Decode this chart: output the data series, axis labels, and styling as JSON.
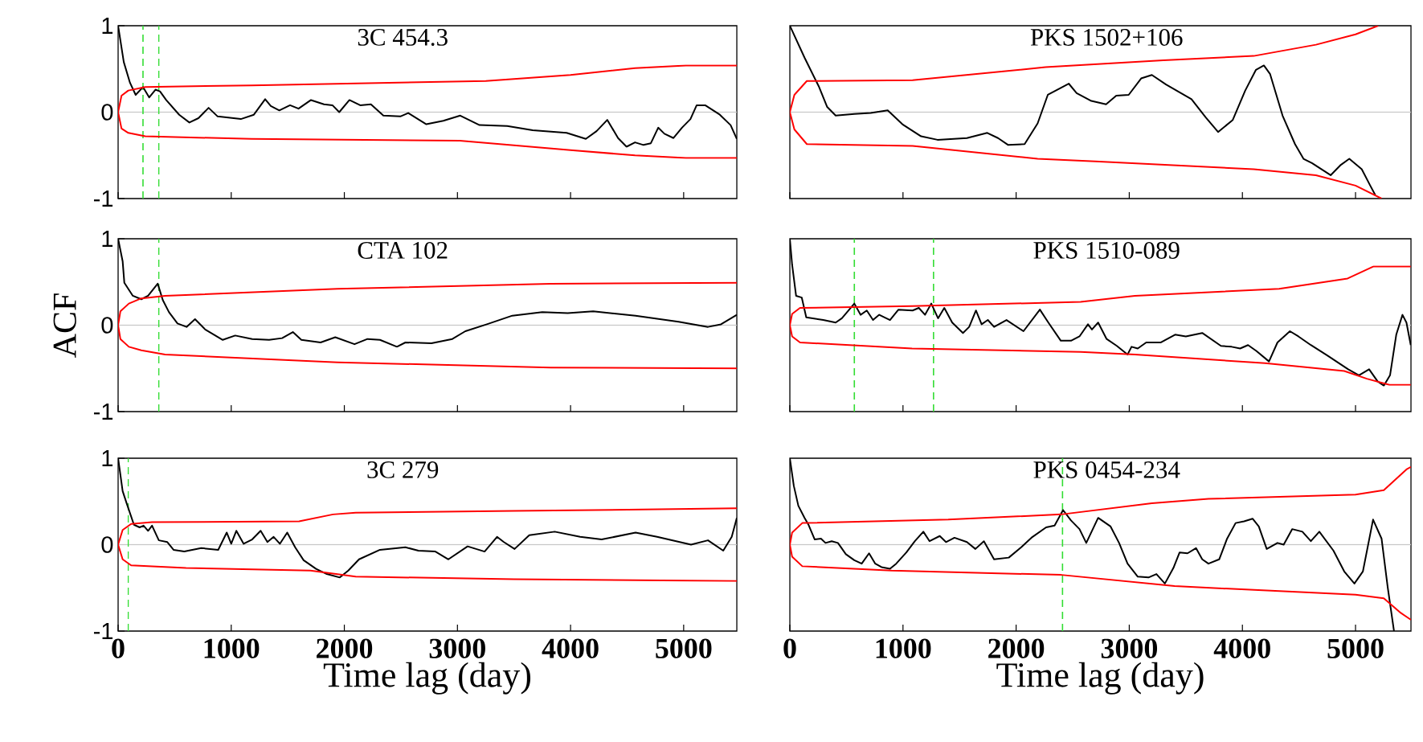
{
  "chart_data": [
    {
      "type": "line",
      "title": "3C 454.3",
      "xlim": [
        0,
        5470
      ],
      "ylim": [
        -1,
        1
      ],
      "xticks": [
        0,
        1000,
        2000,
        3000,
        4000,
        5000
      ],
      "yticks": [
        -1,
        0,
        1
      ],
      "tick_labels": "y",
      "ref_lines": [
        {
          "axis": "y",
          "value": 0,
          "color": "#c8c8c8",
          "line_style": "solid"
        },
        {
          "axis": "x",
          "value": 220,
          "color": "#33dd33",
          "line_style": "dashed"
        },
        {
          "axis": "x",
          "value": 360,
          "color": "#33dd33",
          "line_style": "dashed"
        }
      ],
      "series": [
        {
          "color": "#000000",
          "x": [
            0,
            50,
            105,
            155,
            220,
            275,
            330,
            370,
            425,
            540,
            630,
            710,
            800,
            880,
            1085,
            1200,
            1300,
            1350,
            1425,
            1520,
            1595,
            1705,
            1820,
            1895,
            1955,
            2045,
            2140,
            2235,
            2345,
            2495,
            2565,
            2725,
            2875,
            3025,
            3195,
            3440,
            3665,
            3965,
            4135,
            4230,
            4325,
            4420,
            4495,
            4570,
            4645,
            4710,
            4775,
            4830,
            4910,
            4985,
            5060,
            5115,
            5190,
            5320,
            5415,
            5470
          ],
          "values": [
            1.0,
            0.58,
            0.34,
            0.2,
            0.29,
            0.17,
            0.26,
            0.24,
            0.14,
            -0.03,
            -0.12,
            -0.07,
            0.05,
            -0.05,
            -0.08,
            -0.03,
            0.15,
            0.07,
            0.02,
            0.08,
            0.04,
            0.14,
            0.09,
            0.08,
            0.0,
            0.14,
            0.08,
            0.09,
            -0.04,
            -0.05,
            -0.01,
            -0.14,
            -0.1,
            -0.04,
            -0.15,
            -0.16,
            -0.21,
            -0.24,
            -0.31,
            -0.22,
            -0.09,
            -0.3,
            -0.4,
            -0.35,
            -0.38,
            -0.36,
            -0.18,
            -0.25,
            -0.3,
            -0.18,
            -0.08,
            0.08,
            0.08,
            -0.03,
            -0.15,
            -0.31
          ]
        },
        {
          "color": "#ff0000",
          "x": [
            5470,
            5020,
            4570,
            4000,
            3020,
            1180,
            240,
            90,
            30,
            0,
            30,
            90,
            240,
            1180,
            3250,
            4000,
            4570,
            5020,
            5470
          ],
          "values": [
            -0.53,
            -0.53,
            -0.5,
            -0.44,
            -0.33,
            -0.31,
            -0.28,
            -0.24,
            -0.19,
            0,
            0.19,
            0.25,
            0.29,
            0.31,
            0.36,
            0.43,
            0.51,
            0.54,
            0.54
          ]
        }
      ]
    },
    {
      "type": "line",
      "title": "PKS 1502+106",
      "xlim": [
        0,
        5490
      ],
      "ylim": [
        -1,
        1
      ],
      "xticks": [
        0,
        1000,
        2000,
        3000,
        4000,
        5000
      ],
      "tick_labels": false,
      "ref_lines": [
        {
          "axis": "y",
          "value": 0,
          "color": "#c8c8c8",
          "line_style": "solid"
        }
      ],
      "series": [
        {
          "color": "#000000",
          "x": [
            0,
            130,
            255,
            330,
            405,
            570,
            715,
            865,
            995,
            1160,
            1305,
            1565,
            1745,
            1840,
            1930,
            2075,
            2190,
            2280,
            2465,
            2535,
            2665,
            2795,
            2885,
            2995,
            3105,
            3200,
            3325,
            3550,
            3675,
            3785,
            3915,
            4025,
            4120,
            4190,
            4245,
            4355,
            4465,
            4540,
            4615,
            4780,
            4870,
            4945,
            5055,
            5130,
            5175
          ],
          "values": [
            1.0,
            0.63,
            0.3,
            0.06,
            -0.04,
            -0.02,
            -0.01,
            0.02,
            -0.14,
            -0.28,
            -0.32,
            -0.3,
            -0.24,
            -0.3,
            -0.38,
            -0.37,
            -0.13,
            0.2,
            0.33,
            0.22,
            0.13,
            0.09,
            0.19,
            0.2,
            0.39,
            0.43,
            0.32,
            0.15,
            -0.06,
            -0.23,
            -0.09,
            0.25,
            0.49,
            0.54,
            0.44,
            -0.04,
            -0.37,
            -0.54,
            -0.59,
            -0.73,
            -0.61,
            -0.54,
            -0.66,
            -0.85,
            -0.96
          ]
        },
        {
          "color": "#ff0000",
          "x": [
            5230,
            5000,
            4650,
            4100,
            2700,
            2190,
            1085,
            150,
            40,
            0,
            40,
            150,
            1085,
            2260,
            3300,
            4100,
            4650,
            5000,
            5200
          ],
          "values": [
            -1.0,
            -0.85,
            -0.73,
            -0.66,
            -0.57,
            -0.54,
            -0.39,
            -0.37,
            -0.2,
            0,
            0.2,
            0.36,
            0.37,
            0.52,
            0.6,
            0.65,
            0.78,
            0.9,
            1.0
          ]
        }
      ]
    },
    {
      "type": "line",
      "title": "CTA 102",
      "ylabel": "ACF",
      "xlim": [
        0,
        5470
      ],
      "ylim": [
        -1,
        1
      ],
      "xticks": [
        0,
        1000,
        2000,
        3000,
        4000,
        5000
      ],
      "yticks": [
        -1,
        0,
        1
      ],
      "tick_labels": "y",
      "ref_lines": [
        {
          "axis": "y",
          "value": 0,
          "color": "#c8c8c8",
          "line_style": "solid"
        },
        {
          "axis": "x",
          "value": 360,
          "color": "#33dd33",
          "line_style": "dashed"
        }
      ],
      "series": [
        {
          "color": "#000000",
          "x": [
            0,
            40,
            55,
            130,
            205,
            265,
            350,
            395,
            450,
            525,
            605,
            680,
            770,
            925,
            1035,
            1185,
            1335,
            1450,
            1545,
            1620,
            1790,
            1920,
            2090,
            2205,
            2315,
            2465,
            2540,
            2770,
            2955,
            3070,
            3260,
            3485,
            3750,
            3975,
            4200,
            4575,
            4955,
            5215,
            5330,
            5470
          ],
          "values": [
            1.0,
            0.74,
            0.49,
            0.34,
            0.3,
            0.34,
            0.48,
            0.29,
            0.15,
            0.02,
            -0.02,
            0.07,
            -0.05,
            -0.17,
            -0.12,
            -0.16,
            -0.17,
            -0.15,
            -0.08,
            -0.17,
            -0.2,
            -0.14,
            -0.22,
            -0.16,
            -0.17,
            -0.25,
            -0.2,
            -0.21,
            -0.16,
            -0.07,
            0.01,
            0.11,
            0.15,
            0.14,
            0.16,
            0.11,
            0.04,
            -0.02,
            0.01,
            0.12
          ]
        },
        {
          "color": "#ff0000",
          "x": [
            5470,
            3825,
            1940,
            415,
            205,
            95,
            20,
            0,
            20,
            95,
            205,
            415,
            1940,
            3825,
            5470
          ],
          "values": [
            -0.5,
            -0.49,
            -0.43,
            -0.34,
            -0.29,
            -0.25,
            -0.16,
            0,
            0.16,
            0.25,
            0.31,
            0.34,
            0.42,
            0.48,
            0.49
          ]
        }
      ]
    },
    {
      "type": "line",
      "title": "PKS 1510-089",
      "xlim": [
        0,
        5490
      ],
      "ylim": [
        -1,
        1
      ],
      "xticks": [
        0,
        1000,
        2000,
        3000,
        4000,
        5000
      ],
      "tick_labels": false,
      "ref_lines": [
        {
          "axis": "y",
          "value": 0,
          "color": "#c8c8c8",
          "line_style": "solid"
        },
        {
          "axis": "x",
          "value": 570,
          "color": "#33dd33",
          "line_style": "dashed"
        },
        {
          "axis": "x",
          "value": 1270,
          "color": "#33dd33",
          "line_style": "dashed"
        }
      ],
      "series": [
        {
          "color": "#000000",
          "x": [
            0,
            20,
            55,
            105,
            145,
            295,
            405,
            460,
            570,
            625,
            680,
            735,
            790,
            885,
            960,
            1085,
            1140,
            1195,
            1250,
            1310,
            1365,
            1435,
            1530,
            1585,
            1645,
            1695,
            1750,
            1805,
            1915,
            2065,
            2210,
            2285,
            2395,
            2485,
            2560,
            2635,
            2670,
            2725,
            2800,
            2890,
            2985,
            3020,
            3075,
            3150,
            3280,
            3405,
            3500,
            3645,
            3810,
            3905,
            3980,
            4050,
            4125,
            4235,
            4310,
            4420,
            4495,
            4605,
            4750,
            4935,
            5030,
            5120,
            5195,
            5250,
            5305,
            5360,
            5415,
            5450,
            5488
          ],
          "values": [
            1.0,
            0.7,
            0.34,
            0.32,
            0.09,
            0.06,
            0.03,
            0.08,
            0.25,
            0.12,
            0.17,
            0.06,
            0.12,
            0.06,
            0.18,
            0.17,
            0.2,
            0.12,
            0.25,
            0.08,
            0.2,
            0.03,
            -0.09,
            -0.02,
            0.17,
            0.01,
            0.06,
            -0.02,
            0.06,
            -0.07,
            0.18,
            0.03,
            -0.18,
            -0.18,
            -0.13,
            0.01,
            -0.05,
            0.03,
            -0.16,
            -0.24,
            -0.34,
            -0.25,
            -0.27,
            -0.2,
            -0.2,
            -0.11,
            -0.13,
            -0.09,
            -0.24,
            -0.25,
            -0.27,
            -0.23,
            -0.3,
            -0.42,
            -0.2,
            -0.07,
            -0.13,
            -0.23,
            -0.35,
            -0.51,
            -0.58,
            -0.51,
            -0.65,
            -0.7,
            -0.58,
            -0.11,
            0.12,
            0.03,
            -0.23
          ]
        },
        {
          "color": "#ff0000",
          "x": [
            5488,
            5300,
            5100,
            4900,
            4200,
            3050,
            2570,
            1080,
            90,
            20,
            0,
            20,
            90,
            1080,
            2570,
            3050,
            4325,
            4930,
            5160,
            5488
          ],
          "values": [
            -0.69,
            -0.69,
            -0.62,
            -0.53,
            -0.44,
            -0.34,
            -0.31,
            -0.27,
            -0.2,
            -0.13,
            0,
            0.13,
            0.2,
            0.22,
            0.27,
            0.34,
            0.42,
            0.54,
            0.68,
            0.68
          ]
        }
      ]
    },
    {
      "type": "line",
      "title": "3C 279",
      "xlabel": "Time lag (day)",
      "xlim": [
        0,
        5470
      ],
      "ylim": [
        -1,
        1
      ],
      "xticks": [
        0,
        1000,
        2000,
        3000,
        4000,
        5000
      ],
      "yticks": [
        -1,
        0,
        1
      ],
      "ref_lines": [
        {
          "axis": "y",
          "value": 0,
          "color": "#c8c8c8",
          "line_style": "solid"
        },
        {
          "axis": "x",
          "value": 90,
          "color": "#33dd33",
          "line_style": "dashed"
        }
      ],
      "series": [
        {
          "color": "#000000",
          "x": [
            0,
            40,
            75,
            140,
            190,
            225,
            265,
            300,
            360,
            435,
            490,
            585,
            735,
            885,
            960,
            1000,
            1045,
            1110,
            1185,
            1260,
            1320,
            1375,
            1430,
            1495,
            1565,
            1640,
            1750,
            1845,
            1960,
            2035,
            2130,
            2315,
            2540,
            2655,
            2805,
            2920,
            3090,
            3240,
            3350,
            3410,
            3505,
            3635,
            3860,
            4085,
            4275,
            4575,
            4765,
            5065,
            5215,
            5350,
            5425,
            5470
          ],
          "values": [
            1.0,
            0.62,
            0.48,
            0.23,
            0.2,
            0.22,
            0.16,
            0.22,
            0.05,
            0.03,
            -0.06,
            -0.08,
            -0.04,
            -0.06,
            0.14,
            0.01,
            0.16,
            0.01,
            0.06,
            0.16,
            0.03,
            0.09,
            0.01,
            0.14,
            -0.03,
            -0.18,
            -0.28,
            -0.34,
            -0.38,
            -0.3,
            -0.17,
            -0.06,
            -0.03,
            -0.07,
            -0.08,
            -0.17,
            -0.02,
            -0.08,
            0.09,
            0.03,
            -0.05,
            0.11,
            0.15,
            0.09,
            0.06,
            0.14,
            0.09,
            0.0,
            0.05,
            -0.07,
            0.09,
            0.31
          ]
        },
        {
          "color": "#ff0000",
          "x": [
            5470,
            3500,
            2100,
            1700,
            600,
            115,
            40,
            0,
            40,
            115,
            300,
            1600,
            1900,
            2100,
            3500,
            5470
          ],
          "values": [
            -0.42,
            -0.4,
            -0.37,
            -0.3,
            -0.27,
            -0.24,
            -0.17,
            0,
            0.17,
            0.24,
            0.26,
            0.27,
            0.35,
            0.37,
            0.39,
            0.42
          ]
        }
      ]
    },
    {
      "type": "line",
      "title": "PKS 0454-234",
      "xlabel": "Time lag (day)",
      "xlim": [
        0,
        5490
      ],
      "ylim": [
        -1,
        1
      ],
      "xticks": [
        0,
        1000,
        2000,
        3000,
        4000,
        5000
      ],
      "tick_labels": "x",
      "ref_lines": [
        {
          "axis": "y",
          "value": 0,
          "color": "#c8c8c8",
          "line_style": "solid"
        },
        {
          "axis": "x",
          "value": 2410,
          "color": "#33dd33",
          "line_style": "dashed"
        }
      ],
      "series": [
        {
          "color": "#000000",
          "x": [
            0,
            35,
            75,
            130,
            165,
            220,
            275,
            315,
            370,
            425,
            495,
            570,
            635,
            700,
            755,
            810,
            885,
            940,
            1030,
            1105,
            1180,
            1235,
            1325,
            1380,
            1455,
            1565,
            1640,
            1715,
            1805,
            1935,
            2045,
            2135,
            2265,
            2340,
            2415,
            2485,
            2560,
            2620,
            2725,
            2835,
            2910,
            2985,
            3075,
            3170,
            3240,
            3315,
            3390,
            3445,
            3515,
            3590,
            3645,
            3700,
            3795,
            3865,
            3940,
            4015,
            4090,
            4145,
            4215,
            4310,
            4365,
            4440,
            4530,
            4605,
            4680,
            4805,
            4900,
            4990,
            5065,
            5155,
            5230,
            5285,
            5340
          ],
          "values": [
            1.0,
            0.68,
            0.45,
            0.31,
            0.23,
            0.06,
            0.07,
            0.02,
            0.04,
            0.02,
            -0.11,
            -0.18,
            -0.22,
            -0.1,
            -0.22,
            -0.26,
            -0.28,
            -0.22,
            -0.09,
            0.04,
            0.15,
            0.04,
            0.1,
            0.03,
            0.08,
            0.03,
            -0.05,
            0.04,
            -0.17,
            -0.15,
            -0.03,
            0.08,
            0.2,
            0.22,
            0.4,
            0.28,
            0.18,
            0.02,
            0.31,
            0.21,
            0.02,
            -0.22,
            -0.37,
            -0.38,
            -0.34,
            -0.45,
            -0.27,
            -0.09,
            -0.1,
            -0.04,
            -0.17,
            -0.22,
            -0.17,
            0.07,
            0.25,
            0.27,
            0.3,
            0.21,
            -0.05,
            0.02,
            0.0,
            0.18,
            0.15,
            0.04,
            0.15,
            -0.07,
            -0.31,
            -0.45,
            -0.31,
            0.29,
            0.07,
            -0.5,
            -1.0
          ]
        },
        {
          "color": "#ff0000",
          "x": [
            5490,
            5400,
            5250,
            5000,
            3400,
            2400,
            900,
            110,
            20,
            0,
            20,
            110,
            1400,
            2400,
            3200,
            3700,
            5000,
            5250,
            5450,
            5490
          ],
          "values": [
            -0.87,
            -0.79,
            -0.62,
            -0.58,
            -0.48,
            -0.35,
            -0.3,
            -0.25,
            -0.14,
            0,
            0.14,
            0.25,
            0.29,
            0.35,
            0.48,
            0.53,
            0.58,
            0.63,
            0.87,
            0.9
          ]
        }
      ]
    }
  ]
}
